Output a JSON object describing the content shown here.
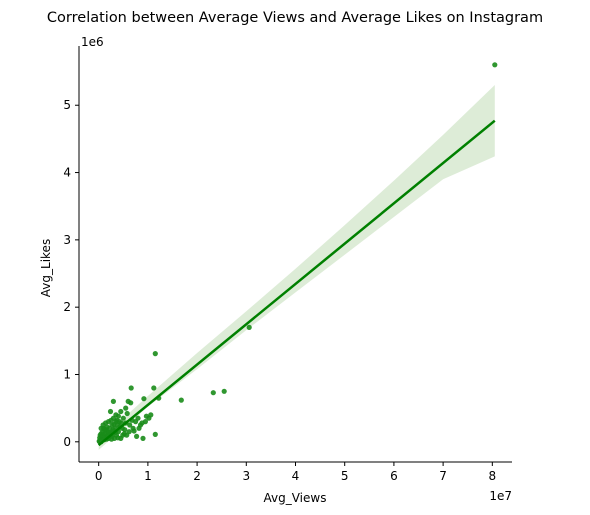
{
  "chart_data": {
    "type": "scatter",
    "title": "Correlation between Average Views and Average Likes on Instagram",
    "xlabel": "Avg_Views",
    "ylabel": "Avg_Likes",
    "x_offset_label": "1e7",
    "y_offset_label": "1e6",
    "x_scale": 10000000,
    "y_scale": 1000000,
    "xlim": [
      -0.4,
      8.4
    ],
    "ylim": [
      -0.3,
      5.88
    ],
    "xticks": [
      0,
      1,
      2,
      3,
      4,
      5,
      6,
      7,
      8
    ],
    "yticks": [
      0,
      1,
      2,
      3,
      4,
      5
    ],
    "grid": false,
    "colors": {
      "points": "#1a8c1a",
      "line": "#008000",
      "band": "#d9ead3",
      "axis": "#000000"
    },
    "regression": {
      "x": [
        0.0,
        8.05
      ],
      "y": [
        -0.05,
        4.77
      ],
      "ci_x": [
        0.0,
        1.0,
        2.0,
        3.0,
        4.0,
        5.0,
        6.0,
        7.0,
        8.05
      ],
      "ci_upper": [
        0.02,
        0.68,
        1.32,
        1.94,
        2.57,
        3.22,
        3.88,
        4.56,
        5.3
      ],
      "ci_lower": [
        -0.12,
        0.52,
        1.08,
        1.66,
        2.22,
        2.78,
        3.34,
        3.9,
        4.24
      ]
    },
    "points": [
      {
        "x": 8.05,
        "y": 5.6
      },
      {
        "x": 3.06,
        "y": 1.7
      },
      {
        "x": 2.55,
        "y": 0.75
      },
      {
        "x": 2.33,
        "y": 0.73
      },
      {
        "x": 1.68,
        "y": 0.62
      },
      {
        "x": 1.15,
        "y": 1.31
      },
      {
        "x": 1.12,
        "y": 0.8
      },
      {
        "x": 1.22,
        "y": 0.65
      },
      {
        "x": 1.15,
        "y": 0.11
      },
      {
        "x": 1.06,
        "y": 0.4
      },
      {
        "x": 1.02,
        "y": 0.35
      },
      {
        "x": 0.95,
        "y": 0.3
      },
      {
        "x": 0.92,
        "y": 0.64
      },
      {
        "x": 0.9,
        "y": 0.05
      },
      {
        "x": 0.85,
        "y": 0.25
      },
      {
        "x": 0.8,
        "y": 0.35
      },
      {
        "x": 0.77,
        "y": 0.08
      },
      {
        "x": 0.75,
        "y": 0.3
      },
      {
        "x": 0.7,
        "y": 0.2
      },
      {
        "x": 0.66,
        "y": 0.8
      },
      {
        "x": 0.65,
        "y": 0.58
      },
      {
        "x": 0.62,
        "y": 0.15
      },
      {
        "x": 0.6,
        "y": 0.6
      },
      {
        "x": 0.58,
        "y": 0.42
      },
      {
        "x": 0.55,
        "y": 0.28
      },
      {
        "x": 0.55,
        "y": 0.5
      },
      {
        "x": 0.52,
        "y": 0.12
      },
      {
        "x": 0.5,
        "y": 0.35
      },
      {
        "x": 0.48,
        "y": 0.2
      },
      {
        "x": 0.45,
        "y": 0.45
      },
      {
        "x": 0.45,
        "y": 0.05
      },
      {
        "x": 0.42,
        "y": 0.3
      },
      {
        "x": 0.4,
        "y": 0.15
      },
      {
        "x": 0.4,
        "y": 0.38
      },
      {
        "x": 0.38,
        "y": 0.25
      },
      {
        "x": 0.36,
        "y": 0.1
      },
      {
        "x": 0.35,
        "y": 0.3
      },
      {
        "x": 0.33,
        "y": 0.2
      },
      {
        "x": 0.32,
        "y": 0.05
      },
      {
        "x": 0.3,
        "y": 0.6
      },
      {
        "x": 0.3,
        "y": 0.35
      },
      {
        "x": 0.28,
        "y": 0.15
      },
      {
        "x": 0.27,
        "y": 0.25
      },
      {
        "x": 0.25,
        "y": 0.1
      },
      {
        "x": 0.24,
        "y": 0.45
      },
      {
        "x": 0.22,
        "y": 0.2
      },
      {
        "x": 0.2,
        "y": 0.05
      },
      {
        "x": 0.2,
        "y": 0.3
      },
      {
        "x": 0.18,
        "y": 0.15
      },
      {
        "x": 0.17,
        "y": 0.22
      },
      {
        "x": 0.15,
        "y": 0.08
      },
      {
        "x": 0.15,
        "y": 0.18
      },
      {
        "x": 0.13,
        "y": 0.12
      },
      {
        "x": 0.12,
        "y": 0.05
      },
      {
        "x": 0.1,
        "y": 0.2
      },
      {
        "x": 0.1,
        "y": 0.1
      },
      {
        "x": 0.08,
        "y": 0.15
      },
      {
        "x": 0.08,
        "y": 0.03
      },
      {
        "x": 0.06,
        "y": 0.08
      },
      {
        "x": 0.05,
        "y": 0.12
      },
      {
        "x": 0.04,
        "y": 0.04
      },
      {
        "x": 0.03,
        "y": 0.02
      },
      {
        "x": 0.02,
        "y": 0.06
      },
      {
        "x": 0.01,
        "y": 0.01
      },
      {
        "x": 0.02,
        "y": 0.0
      },
      {
        "x": 0.05,
        "y": 0.0
      },
      {
        "x": 0.07,
        "y": 0.02
      },
      {
        "x": 0.11,
        "y": 0.03
      },
      {
        "x": 0.14,
        "y": 0.06
      },
      {
        "x": 0.19,
        "y": 0.1
      },
      {
        "x": 0.23,
        "y": 0.12
      },
      {
        "x": 0.26,
        "y": 0.04
      },
      {
        "x": 0.29,
        "y": 0.18
      },
      {
        "x": 0.31,
        "y": 0.26
      },
      {
        "x": 0.34,
        "y": 0.14
      },
      {
        "x": 0.37,
        "y": 0.32
      },
      {
        "x": 0.43,
        "y": 0.22
      },
      {
        "x": 0.46,
        "y": 0.28
      },
      {
        "x": 0.53,
        "y": 0.18
      },
      {
        "x": 0.57,
        "y": 0.1
      },
      {
        "x": 0.63,
        "y": 0.25
      },
      {
        "x": 0.68,
        "y": 0.32
      },
      {
        "x": 0.72,
        "y": 0.16
      },
      {
        "x": 0.82,
        "y": 0.2
      },
      {
        "x": 0.88,
        "y": 0.28
      },
      {
        "x": 0.97,
        "y": 0.38
      },
      {
        "x": 0.05,
        "y": 0.2
      },
      {
        "x": 0.09,
        "y": 0.25
      },
      {
        "x": 0.16,
        "y": 0.04
      },
      {
        "x": 0.21,
        "y": 0.14
      },
      {
        "x": 0.27,
        "y": 0.08
      },
      {
        "x": 0.39,
        "y": 0.06
      },
      {
        "x": 0.49,
        "y": 0.1
      },
      {
        "x": 0.14,
        "y": 0.28
      },
      {
        "x": 0.12,
        "y": 0.18
      },
      {
        "x": 0.03,
        "y": 0.1
      },
      {
        "x": 0.35,
        "y": 0.4
      },
      {
        "x": 0.25,
        "y": 0.32
      }
    ]
  }
}
